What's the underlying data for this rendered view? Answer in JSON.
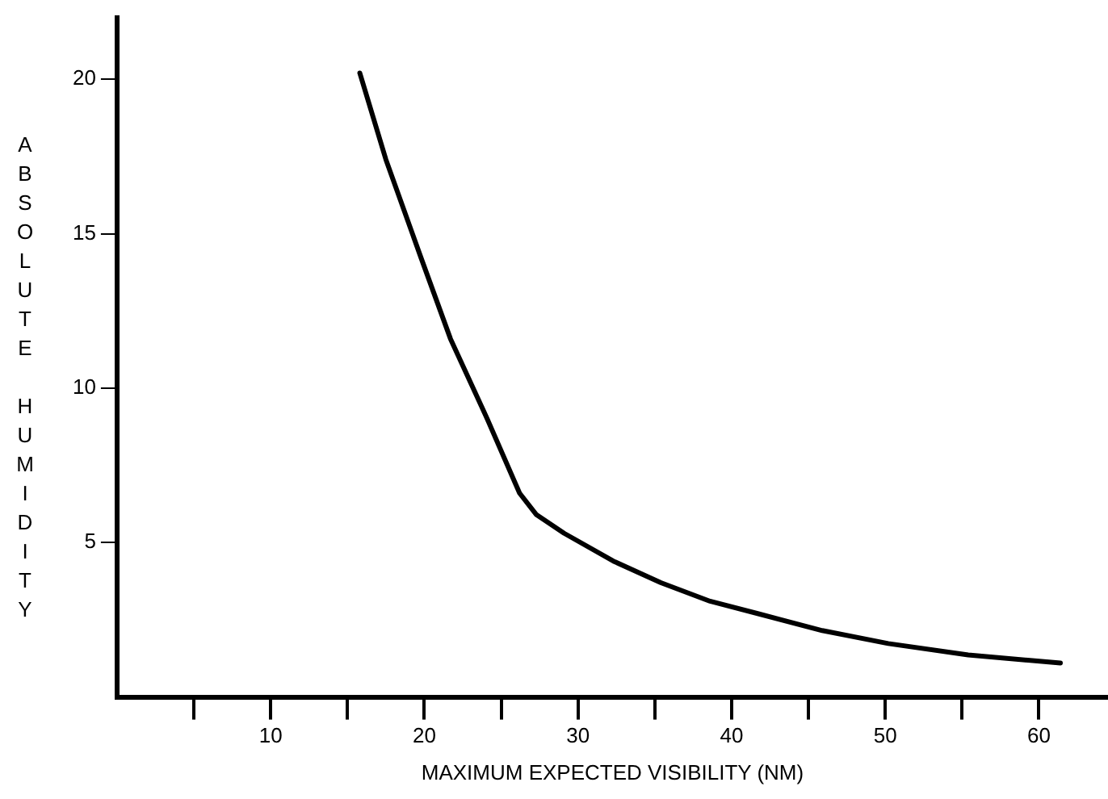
{
  "chart_data": {
    "type": "line",
    "xlabel": "MAXIMUM EXPECTED VISIBILITY (NM)",
    "ylabel": "ABSOLUTE HUMIDITY",
    "x": [
      15.8,
      17.5,
      19.8,
      21.7,
      24.1,
      26.2,
      27.3,
      29.1,
      32.3,
      35.4,
      38.6,
      41.7,
      45.9,
      50.2,
      55.4,
      61.4
    ],
    "series": [
      {
        "color": "#000000",
        "values": [
          20.2,
          17.4,
          14.2,
          11.6,
          9.0,
          6.6,
          5.9,
          5.3,
          4.4,
          3.7,
          3.1,
          2.7,
          2.15,
          1.73,
          1.36,
          1.1
        ]
      }
    ],
    "xlim": [
      0,
      64.5
    ],
    "ylim": [
      0,
      22
    ],
    "xticks": [
      {
        "value": 5,
        "label": null
      },
      10,
      {
        "value": 15,
        "label": null
      },
      20,
      {
        "value": 25,
        "label": null
      },
      30,
      {
        "value": 35,
        "label": null
      },
      40,
      {
        "value": 45,
        "label": null
      },
      50,
      {
        "value": 55,
        "label": null
      },
      60
    ],
    "yticks": [
      5,
      10,
      15,
      20
    ],
    "grid": false,
    "legend": false,
    "marker": "none",
    "line_style": "solid"
  }
}
